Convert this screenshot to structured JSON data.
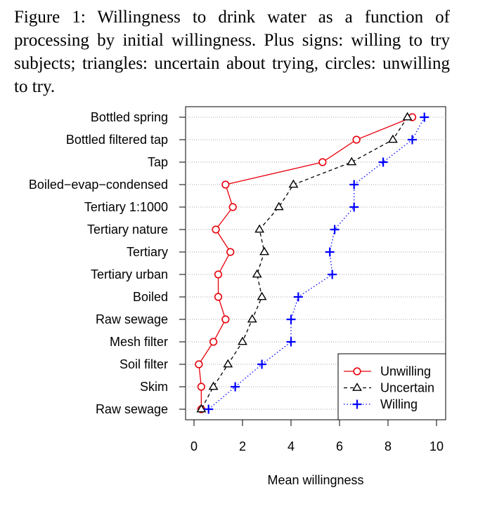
{
  "caption": "Figure 1: Willingness to drink water as a function of processing by initial willingness. Plus signs: willing to try subjects; triangles: uncertain about trying, circles: unwilling to try.",
  "chart_data": {
    "type": "line",
    "orientation": "horizontal-dotplot",
    "categories": [
      "Bottled spring",
      "Bottled filtered tap",
      "Tap",
      "Boiled−evap−condensed",
      "Tertiary 1:1000",
      "Tertiary nature",
      "Tertiary",
      "Tertiary urban",
      "Boiled",
      "Raw sewage",
      "Mesh filter",
      "Soil filter",
      "Skim",
      "Raw sewage"
    ],
    "xlabel": "Mean willingness",
    "ylabel": "",
    "xlim": [
      -0.3,
      10.3
    ],
    "xticks": [
      "0",
      "2",
      "4",
      "6",
      "8",
      "10"
    ],
    "grid": "dotted horizontal",
    "legend_position": "bottom-right",
    "series": [
      {
        "name": "Unwilling",
        "marker": "circle",
        "line": "solid",
        "color": "#e8000b",
        "values": [
          9.0,
          6.7,
          5.3,
          1.3,
          1.6,
          0.9,
          1.5,
          1.0,
          1.0,
          1.3,
          0.8,
          0.2,
          0.3,
          0.3
        ]
      },
      {
        "name": "Uncertain",
        "marker": "triangle",
        "line": "dashed",
        "color": "#000000",
        "values": [
          8.8,
          8.2,
          6.5,
          4.1,
          3.5,
          2.7,
          2.9,
          2.6,
          2.8,
          2.4,
          2.0,
          1.4,
          0.8,
          0.3
        ]
      },
      {
        "name": "Willing",
        "marker": "plus",
        "line": "dotted",
        "color": "#0000ff",
        "values": [
          9.5,
          9.0,
          7.8,
          6.6,
          6.6,
          5.8,
          5.6,
          5.7,
          4.3,
          4.0,
          4.0,
          2.8,
          1.7,
          0.6
        ]
      }
    ]
  }
}
